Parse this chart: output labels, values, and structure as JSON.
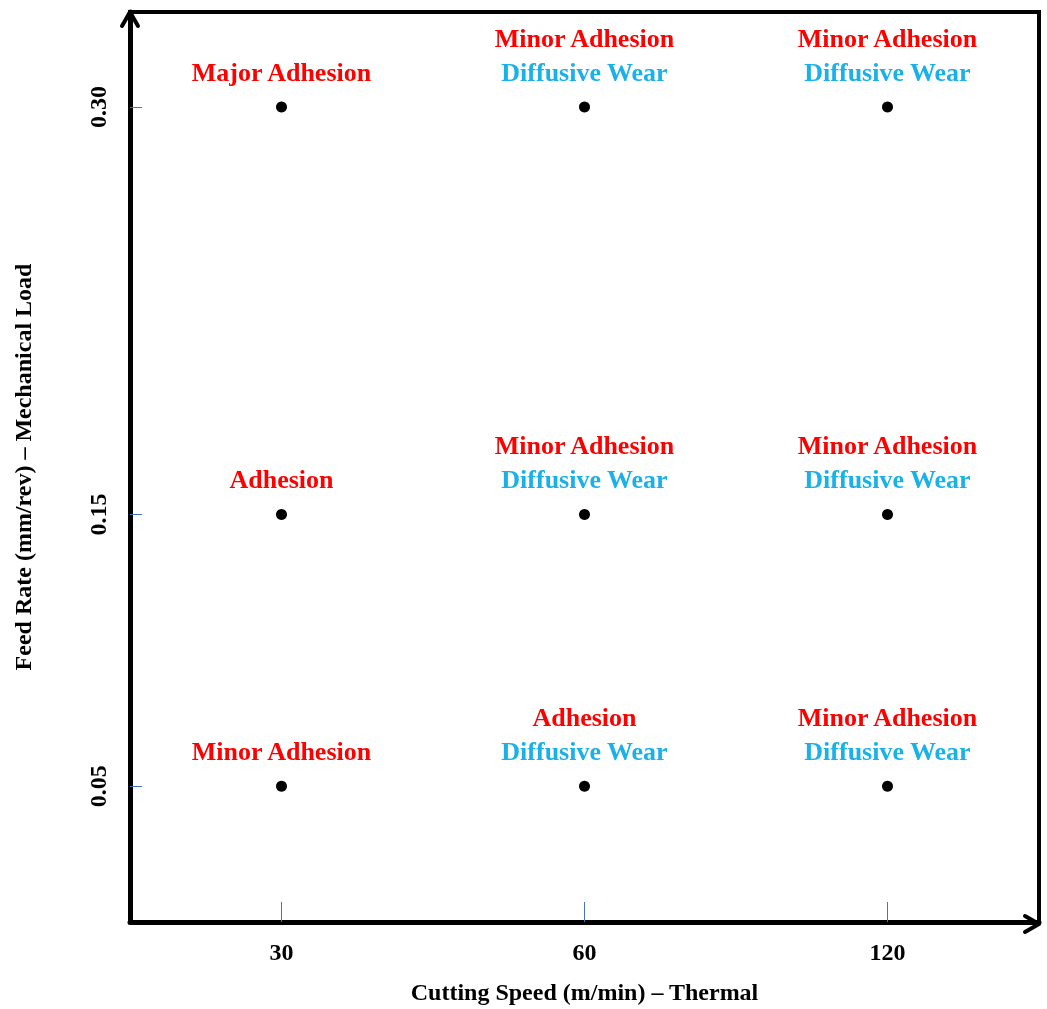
{
  "chart_data": {
    "type": "scatter",
    "xlabel": "Cutting Speed (m/min) – Thermal",
    "ylabel": "Feed Rate (mm/rev) – Mechanical Load",
    "categories": [
      "30",
      "60",
      "120"
    ],
    "series": [
      {
        "x": [
          "30",
          "30",
          "30",
          "60",
          "60",
          "60",
          "120",
          "120",
          "120"
        ],
        "values": [
          0.3,
          0.15,
          0.05,
          0.3,
          0.15,
          0.05,
          0.3,
          0.15,
          0.05
        ],
        "color": "#000000"
      }
    ],
    "ylim": [
      0,
      0.335
    ],
    "yticks": [
      {
        "value": 0.05,
        "label": "0.05"
      },
      {
        "value": 0.15,
        "label": "0.15"
      },
      {
        "value": 0.3,
        "label": "0.30"
      }
    ],
    "marker": "circle",
    "grid": false,
    "annotations": [
      {
        "text": "Major Adhesion",
        "x": "30",
        "y": 0.3
      },
      {
        "text": "Adhesion",
        "x": "30",
        "y": 0.15
      },
      {
        "text": "Minor Adhesion",
        "x": "30",
        "y": 0.05
      },
      {
        "text": "Minor Adhesion",
        "x": "60",
        "y": 0.3
      },
      {
        "text": "Diffusive Wear",
        "x": "60",
        "y": 0.3
      },
      {
        "text": "Minor Adhesion",
        "x": "60",
        "y": 0.15
      },
      {
        "text": "Diffusive Wear",
        "x": "60",
        "y": 0.15
      },
      {
        "text": "Adhesion",
        "x": "60",
        "y": 0.05
      },
      {
        "text": "Diffusive Wear",
        "x": "60",
        "y": 0.05
      },
      {
        "text": "Minor Adhesion",
        "x": "120",
        "y": 0.3
      },
      {
        "text": "Diffusive Wear",
        "x": "120",
        "y": 0.3
      },
      {
        "text": "Minor Adhesion",
        "x": "120",
        "y": 0.15
      },
      {
        "text": "Diffusive Wear",
        "x": "120",
        "y": 0.15
      },
      {
        "text": "Minor Adhesion",
        "x": "120",
        "y": 0.05
      },
      {
        "text": "Diffusive Wear",
        "x": "120",
        "y": 0.05
      }
    ]
  }
}
